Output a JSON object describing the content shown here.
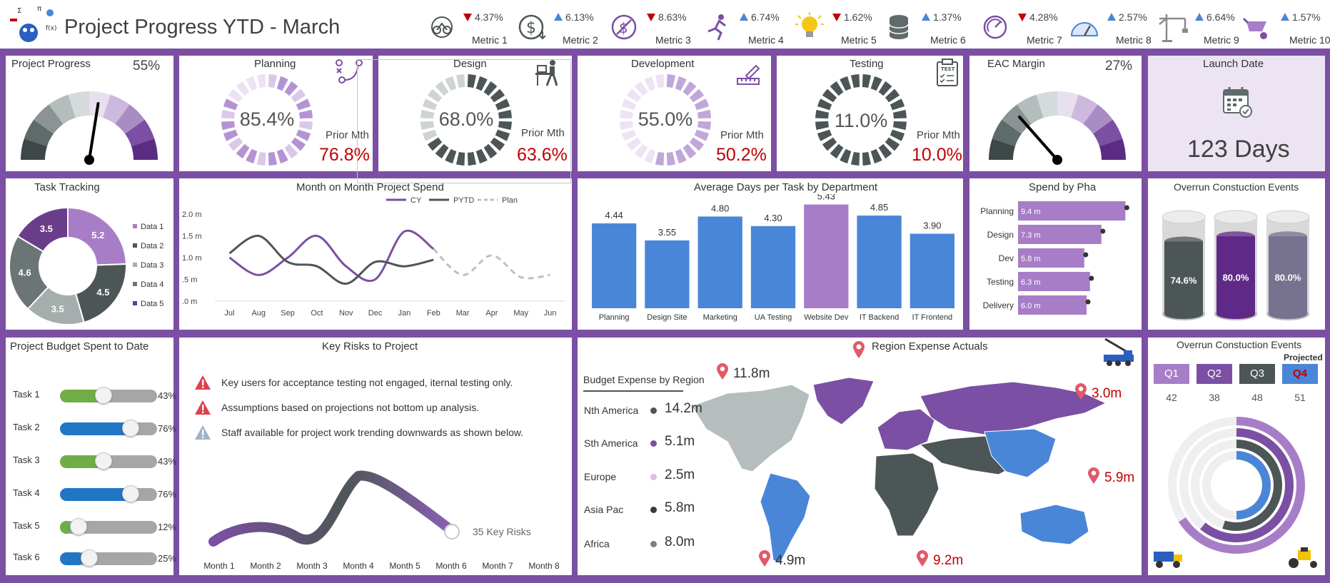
{
  "header": {
    "title": "Project Progress YTD - March",
    "metrics": [
      {
        "icon": "bicycle-icon",
        "dir": "down",
        "change": "4.37%",
        "label": "Metric 1"
      },
      {
        "icon": "dollar-coin-icon",
        "dir": "up",
        "change": "6.13%",
        "label": "Metric 2"
      },
      {
        "icon": "no-dollar-icon",
        "dir": "down",
        "change": "8.63%",
        "label": "Metric 3"
      },
      {
        "icon": "running-figure-icon",
        "dir": "up",
        "change": "6.74%",
        "label": "Metric 4"
      },
      {
        "icon": "lightbulb-icon",
        "dir": "down",
        "change": "1.62%",
        "label": "Metric 5"
      },
      {
        "icon": "database-icon",
        "dir": "up",
        "change": "1.37%",
        "label": "Metric 6"
      },
      {
        "icon": "gauge-icon",
        "dir": "down",
        "change": "4.28%",
        "label": "Metric 7"
      },
      {
        "icon": "speedometer-icon",
        "dir": "up",
        "change": "2.57%",
        "label": "Metric 8"
      },
      {
        "icon": "tower-crane-icon",
        "dir": "up",
        "change": "6.64%",
        "label": "Metric 9"
      },
      {
        "icon": "wheelbarrow-icon",
        "dir": "up",
        "change": "1.57%",
        "label": "Metric 10"
      }
    ]
  },
  "colors": {
    "purple": "#7b4fa3",
    "dark": "#4d5656",
    "blue": "#4a86d8",
    "lilac": "#a87dc8",
    "red": "#c00000",
    "green": "#70ad47"
  },
  "row1": {
    "project_progress": {
      "title": "Project Progress",
      "value": "55%",
      "needle_fraction": 0.55
    },
    "planning": {
      "title": "Planning",
      "value": "85.4%",
      "prior_label": "Prior Mth",
      "prior": "76.8%",
      "fill": 0.854
    },
    "design": {
      "title": "Design",
      "value": "68.0%",
      "prior_label": "Prior Mth",
      "prior": "63.6%",
      "fill": 0.68
    },
    "development": {
      "title": "Development",
      "value": "55.0%",
      "prior_label": "Prior Mth",
      "prior": "50.2%",
      "fill": 0.55
    },
    "testing": {
      "title": "Testing",
      "value": "11.0%",
      "prior_label": "Prior Mth",
      "prior": "10.0%",
      "fill": 0.11
    },
    "eac_margin": {
      "title": "EAC Margin",
      "value": "27%",
      "needle_fraction": 0.27
    },
    "launch": {
      "title": "Launch Date",
      "value": "123 Days"
    }
  },
  "task_tracking": {
    "title": "Task Tracking",
    "values": [
      5.2,
      4.5,
      3.5,
      4.6,
      3.5
    ],
    "labels": [
      "5.2",
      "4.5",
      "3.5",
      "4.6",
      "3.5"
    ],
    "legend": [
      "Data 1",
      "Data 2",
      "Data 3",
      "Data 4",
      "Data 5"
    ],
    "colors": [
      "#a87dc8",
      "#4d5656",
      "#a6adad",
      "#6b7575",
      "#6a3d8a"
    ]
  },
  "chart_data": [
    {
      "type": "line",
      "title": "Month on Month Project Spend",
      "x": [
        "Jul",
        "Aug",
        "Sep",
        "Oct",
        "Nov",
        "Dec",
        "Jan",
        "Feb",
        "Mar",
        "Apr",
        "May",
        "Jun"
      ],
      "yticks": [
        "2.0 m",
        "1.5 m",
        "1.0 m",
        ".5 m",
        ".0 m"
      ],
      "ylim": [
        0,
        2.0
      ],
      "series": [
        {
          "name": "CY",
          "values": [
            1.0,
            0.6,
            1.0,
            1.5,
            0.8,
            0.5,
            1.6,
            1.2,
            null,
            null,
            null,
            null
          ],
          "color": "#7b4fa3"
        },
        {
          "name": "PYTD",
          "values": [
            1.1,
            1.5,
            0.9,
            0.8,
            0.4,
            0.9,
            0.8,
            0.95,
            null,
            null,
            null,
            null
          ],
          "color": "#4d5656"
        },
        {
          "name": "Plan",
          "values": [
            null,
            null,
            null,
            null,
            null,
            null,
            null,
            1.2,
            0.6,
            1.05,
            0.55,
            0.6
          ],
          "color": "#bfbfbf"
        }
      ]
    },
    {
      "type": "bar",
      "title": "Average Days per Task by Department",
      "categories": [
        "Planning",
        "Design Site",
        "Marketing",
        "UA Testing",
        "Website Dev",
        "IT Backend",
        "IT Frontend"
      ],
      "values": [
        4.44,
        3.55,
        4.8,
        4.3,
        5.43,
        4.85,
        3.9
      ],
      "labels": [
        "4.44",
        "3.55",
        "4.80",
        "4.30",
        "5.43",
        "4.85",
        "3.90"
      ],
      "colors": [
        "#4a86d8",
        "#4a86d8",
        "#4a86d8",
        "#4a86d8",
        "#a87dc8",
        "#4a86d8",
        "#4a86d8"
      ],
      "ylim": [
        0,
        5.6
      ]
    },
    {
      "type": "bar",
      "title": "Spend by Pha",
      "categories": [
        "Planning",
        "Design",
        "Dev",
        "Testing",
        "Delivery"
      ],
      "values": [
        9.4,
        7.3,
        5.8,
        6.3,
        6.0
      ],
      "labels": [
        "9.4 m",
        "7.3 m",
        "5.8 m",
        "6.3 m",
        "6.0 m"
      ],
      "xlim": [
        0,
        10
      ]
    }
  ],
  "overrun_top": {
    "title": "Overrun Constuction Events",
    "values": [
      "74.6%",
      "80.0%",
      "80.0%"
    ],
    "levels": [
      0.746,
      0.8,
      0.8
    ],
    "colors": [
      "#4d5656",
      "#5f2a87",
      "#77728f"
    ]
  },
  "budget": {
    "title": "Project Budget Spent to Date",
    "tasks": [
      {
        "name": "Task 1",
        "pct": "43%",
        "fill": 0.43,
        "color": "#70ad47"
      },
      {
        "name": "Task 2",
        "pct": "76%",
        "fill": 0.76,
        "color": "#1f77c4"
      },
      {
        "name": "Task 3",
        "pct": "43%",
        "fill": 0.43,
        "color": "#70ad47"
      },
      {
        "name": "Task 4",
        "pct": "76%",
        "fill": 0.76,
        "color": "#1f77c4"
      },
      {
        "name": "Task 5",
        "pct": "12%",
        "fill": 0.12,
        "color": "#70ad47"
      },
      {
        "name": "Task 6",
        "pct": "25%",
        "fill": 0.25,
        "color": "#1f77c4"
      }
    ]
  },
  "risks": {
    "title": "Key Risks to Project",
    "items": [
      {
        "text": "Key users for acceptance testing not engaged, iternal testing only.",
        "level": "high"
      },
      {
        "text": "Assumptions based on projections not bottom up analysis.",
        "level": "high"
      },
      {
        "text": "Staff available for project work trending downwards as shown below.",
        "level": "low"
      }
    ],
    "trend_label": "35 Key Risks",
    "months": [
      "Month 1",
      "Month 2",
      "Month 3",
      "Month 4",
      "Month 5",
      "Month 6",
      "Month 7",
      "Month 8"
    ]
  },
  "regions": {
    "title": "Region Expense Actuals",
    "list_title": "Budget Expense by Region",
    "rows": [
      {
        "name": "Nth America",
        "value": "14.2m",
        "color": "#4d5656"
      },
      {
        "name": "Sth America",
        "value": "5.1m",
        "color": "#7b4fa3"
      },
      {
        "name": "Europe",
        "value": "2.5m",
        "color": "#d8bfe8"
      },
      {
        "name": "Asia Pac",
        "value": "5.8m",
        "color": "#333a3a"
      },
      {
        "name": "Africa",
        "value": "8.0m",
        "color": "#7f7f7f"
      }
    ],
    "pins": [
      "11.8m",
      "3.0m",
      "5.9m",
      "4.9m",
      "9.2m"
    ]
  },
  "overrun_bottom": {
    "title": "Overrun Constuction Events",
    "projected": "Projected",
    "quarters": [
      {
        "label": "Q1",
        "value": "42",
        "color": "#a87dc8"
      },
      {
        "label": "Q2",
        "value": "38",
        "color": "#7b4fa3"
      },
      {
        "label": "Q3",
        "value": "48",
        "color": "#4d5656"
      },
      {
        "label": "Q4",
        "value": "51",
        "color": "#4a86d8"
      }
    ],
    "ring_fractions": [
      0.66,
      0.61,
      0.55,
      0.5
    ]
  }
}
